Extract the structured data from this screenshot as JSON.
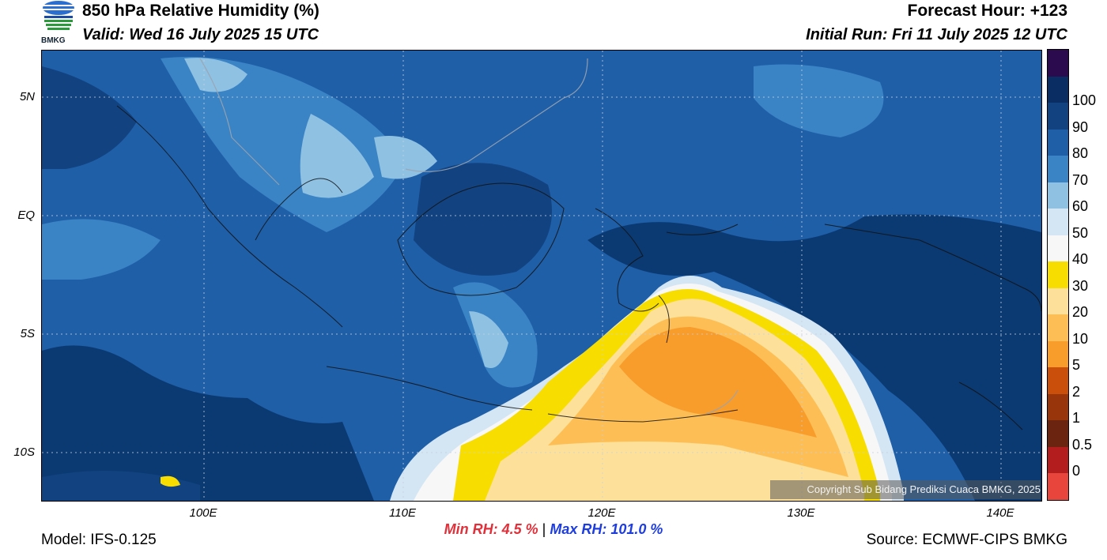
{
  "header": {
    "title": "850 hPa Relative Humidity (%)",
    "valid": "Valid: Wed 16 July 2025 15 UTC",
    "forecast_hour": "Forecast Hour: +123",
    "initial_run": "Initial Run: Fri 11 July 2025 12 UTC",
    "logo_text": "BMKG"
  },
  "map": {
    "lat_labels": [
      "5N",
      "EQ",
      "5S",
      "10S"
    ],
    "lon_labels": [
      "100E",
      "110E",
      "120E",
      "130E",
      "140E"
    ],
    "copyright": "Copyright Sub Bidang Prediksi Cuaca BMKG, 2025",
    "colors": {
      "deep_blue": "#0b3a72",
      "mid_blue": "#1f5fa8",
      "blue": "#3a83c4",
      "light_blue": "#8fc1e3",
      "pale": "#d4e6f4",
      "white": "#f7f7f7",
      "yellow": "#f7dd00",
      "light_orange": "#fde09a",
      "orange": "#fdbf55",
      "dark_orange": "#f89c2c"
    }
  },
  "colorbar": {
    "segments": [
      {
        "label": "",
        "color": "#2b0a4e"
      },
      {
        "label": "100",
        "color": "#0a2d63"
      },
      {
        "label": "90",
        "color": "#12427f"
      },
      {
        "label": "80",
        "color": "#1f5fa8"
      },
      {
        "label": "70",
        "color": "#3a83c4"
      },
      {
        "label": "60",
        "color": "#8fc1e3"
      },
      {
        "label": "50",
        "color": "#d4e6f4"
      },
      {
        "label": "40",
        "color": "#f7f7f7"
      },
      {
        "label": "30",
        "color": "#f7dd00"
      },
      {
        "label": "20",
        "color": "#fde09a"
      },
      {
        "label": "10",
        "color": "#fdbf55"
      },
      {
        "label": "5",
        "color": "#f89c2c"
      },
      {
        "label": "2",
        "color": "#c94f0a"
      },
      {
        "label": "1",
        "color": "#98350a"
      },
      {
        "label": "0.5",
        "color": "#6a2410"
      },
      {
        "label": "0",
        "color": "#b31d1d"
      },
      {
        "label": "",
        "color": "#e8463c"
      }
    ]
  },
  "footer": {
    "min_rh": "Min RH:   4.5 %",
    "separator": "|",
    "max_rh": "Max RH: 101.0 %",
    "model": "Model: IFS-0.125",
    "source": "Source: ECMWF-CIPS BMKG"
  }
}
